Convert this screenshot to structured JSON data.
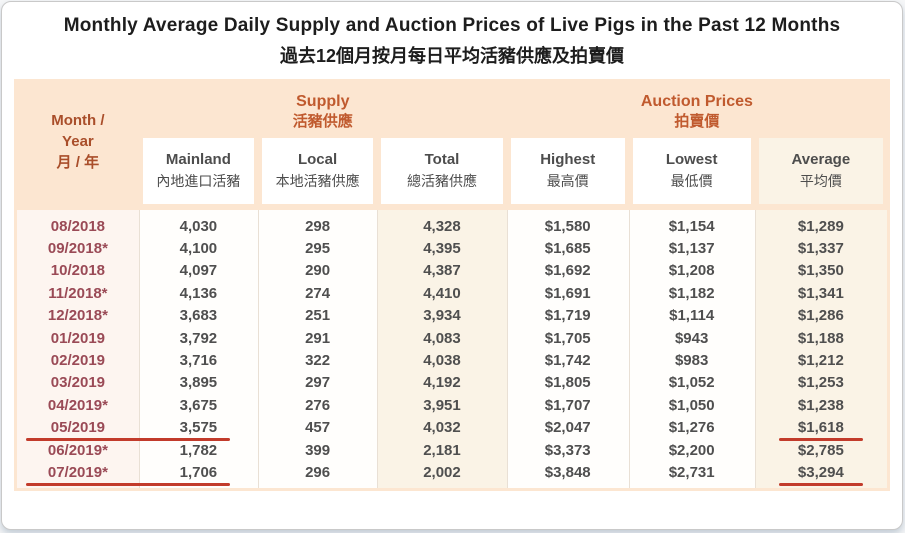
{
  "title": {
    "en": "Monthly Average Daily Supply and Auction Prices of Live Pigs in the Past 12 Months",
    "zh": "過去12個月按月每日平均活豬供應及拍賣價"
  },
  "table": {
    "corner": {
      "line1": "Month /",
      "line2": "Year",
      "line3": "月 / 年"
    },
    "groups": [
      {
        "en": "Supply",
        "zh": "活豬供應"
      },
      {
        "en": "Auction Prices",
        "zh": "拍賣價"
      }
    ]
  },
  "chart_data": {
    "type": "table",
    "title": "Monthly Average Daily Supply and Auction Prices of Live Pigs in the Past 12 Months",
    "title_zh": "過去12個月按月每日平均活豬供應及拍賣價",
    "column_groups": [
      {
        "en": "Supply",
        "zh": "活豬供應",
        "spans": [
          "mainland",
          "local",
          "total"
        ]
      },
      {
        "en": "Auction Prices",
        "zh": "拍賣價",
        "spans": [
          "highest",
          "lowest",
          "average"
        ]
      }
    ],
    "columns": [
      {
        "key": "month",
        "en": "Month / Year",
        "zh": "月 / 年"
      },
      {
        "key": "mainland",
        "en": "Mainland",
        "zh": "內地進口活豬"
      },
      {
        "key": "local",
        "en": "Local",
        "zh": "本地活豬供應"
      },
      {
        "key": "total",
        "en": "Total",
        "zh": "總活豬供應"
      },
      {
        "key": "highest",
        "en": "Highest",
        "zh": "最高價"
      },
      {
        "key": "lowest",
        "en": "Lowest",
        "zh": "最低價"
      },
      {
        "key": "average",
        "en": "Average",
        "zh": "平均價"
      }
    ],
    "rows": [
      {
        "month": "08/2018",
        "mainland": "4,030",
        "local": "298",
        "total": "4,328",
        "highest": "$1,580",
        "lowest": "$1,154",
        "average": "$1,289"
      },
      {
        "month": "09/2018*",
        "mainland": "4,100",
        "local": "295",
        "total": "4,395",
        "highest": "$1,685",
        "lowest": "$1,137",
        "average": "$1,337"
      },
      {
        "month": "10/2018",
        "mainland": "4,097",
        "local": "290",
        "total": "4,387",
        "highest": "$1,692",
        "lowest": "$1,208",
        "average": "$1,350"
      },
      {
        "month": "11/2018*",
        "mainland": "4,136",
        "local": "274",
        "total": "4,410",
        "highest": "$1,691",
        "lowest": "$1,182",
        "average": "$1,341"
      },
      {
        "month": "12/2018*",
        "mainland": "3,683",
        "local": "251",
        "total": "3,934",
        "highest": "$1,719",
        "lowest": "$1,114",
        "average": "$1,286"
      },
      {
        "month": "01/2019",
        "mainland": "3,792",
        "local": "291",
        "total": "4,083",
        "highest": "$1,705",
        "lowest": "$943",
        "average": "$1,188"
      },
      {
        "month": "02/2019",
        "mainland": "3,716",
        "local": "322",
        "total": "4,038",
        "highest": "$1,742",
        "lowest": "$983",
        "average": "$1,212"
      },
      {
        "month": "03/2019",
        "mainland": "3,895",
        "local": "297",
        "total": "4,192",
        "highest": "$1,805",
        "lowest": "$1,052",
        "average": "$1,253"
      },
      {
        "month": "04/2019*",
        "mainland": "3,675",
        "local": "276",
        "total": "3,951",
        "highest": "$1,707",
        "lowest": "$1,050",
        "average": "$1,238"
      },
      {
        "month": "05/2019",
        "mainland": "3,575",
        "local": "457",
        "total": "4,032",
        "highest": "$2,047",
        "lowest": "$1,276",
        "average": "$1,618",
        "underline_month_mainland": true,
        "underline_average": true
      },
      {
        "month": "06/2019*",
        "mainland": "1,782",
        "local": "399",
        "total": "2,181",
        "highest": "$3,373",
        "lowest": "$2,200",
        "average": "$2,785"
      },
      {
        "month": "07/2019*",
        "mainland": "1,706",
        "local": "296",
        "total": "2,002",
        "highest": "$3,848",
        "lowest": "$2,731",
        "average": "$3,294",
        "underline_month_mainland": true,
        "underline_average": true
      }
    ],
    "annotations": "Hand-drawn red underlines mark the 05/2019 and 07/2019 rows (month and mainland supply figures) and their average prices $1,618 and $3,294."
  },
  "colors": {
    "header_bg": "#fce6d1",
    "group_text": "#c05a2e",
    "corner_text": "#a94e2a",
    "month_text": "#9a4a56",
    "value_text": "#4f4f4f",
    "cream_bg": "#faf3e6",
    "month_col_bg": "#fdf5f0",
    "underline_red": "#c23b2b",
    "separator": "#e9e0d5"
  }
}
